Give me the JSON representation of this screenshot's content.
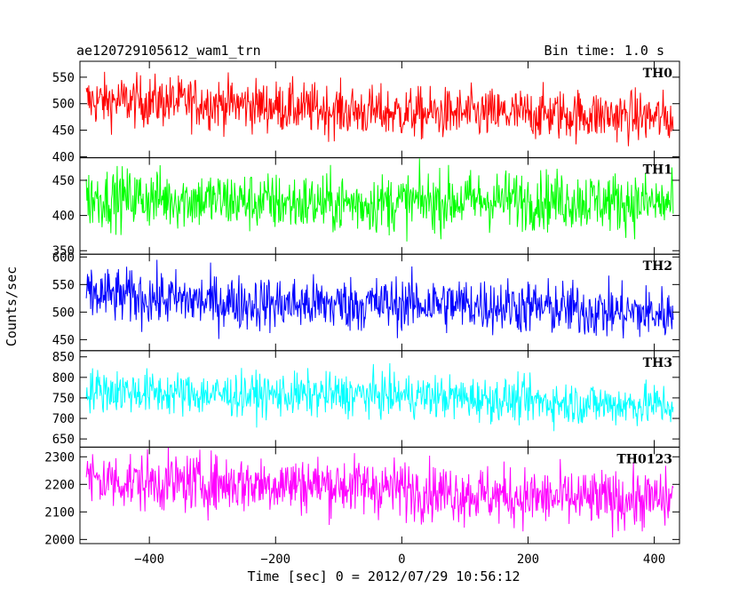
{
  "chart_data": {
    "type": "line",
    "title": "ae120729105612_wam1_trn",
    "subtitle": "Bin time: 1.0 s",
    "xlabel": "Time [sec] 0 = 2012/07/29 10:56:12",
    "ylabel": "Counts/sec",
    "xlim": [
      -510,
      440
    ],
    "x_range_data": [
      -500,
      430
    ],
    "xticks": [
      -400,
      -200,
      0,
      200,
      400
    ],
    "xtick_labels": [
      "−400",
      "−200",
      "0",
      "200",
      "400"
    ],
    "panels": [
      {
        "name": "TH0",
        "color": "#ff0000",
        "ylim": [
          398,
          580
        ],
        "yticks": [
          400,
          450,
          500,
          550
        ],
        "mean_start": 505,
        "mean_end": 470,
        "noise_amplitude": 32
      },
      {
        "name": "TH1",
        "color": "#00ff00",
        "ylim": [
          345,
          482
        ],
        "yticks": [
          350,
          400,
          450
        ],
        "mean_start": 422,
        "mean_end": 418,
        "noise_amplitude": 28
      },
      {
        "name": "TH2",
        "color": "#0000ff",
        "ylim": [
          430,
          605
        ],
        "yticks": [
          450,
          500,
          550,
          600
        ],
        "mean_start": 528,
        "mean_end": 500,
        "noise_amplitude": 33
      },
      {
        "name": "TH3",
        "color": "#00ffff",
        "ylim": [
          630,
          865
        ],
        "yticks": [
          650,
          700,
          750,
          800,
          850
        ],
        "mean_start": 770,
        "mean_end": 735,
        "noise_amplitude": 35
      },
      {
        "name": "TH0123",
        "color": "#ff00ff",
        "ylim": [
          1985,
          2335
        ],
        "yticks": [
          2000,
          2100,
          2200,
          2300
        ],
        "mean_start": 2225,
        "mean_end": 2140,
        "noise_amplitude": 70
      }
    ]
  }
}
